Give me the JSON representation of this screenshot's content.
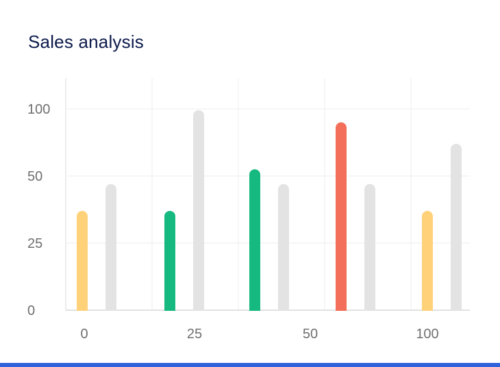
{
  "title": "Sales analysis",
  "chart_data": {
    "type": "bar",
    "title": "Sales analysis",
    "xlabel": "",
    "ylabel": "",
    "y_ticks": [
      "0",
      "25",
      "50",
      "100"
    ],
    "x_ticks": [
      "0",
      "25",
      "50",
      "100"
    ],
    "grid": true,
    "groups": [
      {
        "bars": [
          {
            "value": 37,
            "color": "#ffd27a"
          },
          {
            "value": 47,
            "color": "#e3e3e3"
          }
        ]
      },
      {
        "bars": [
          {
            "value": 37,
            "color": "#16b97f"
          },
          {
            "value": 99,
            "color": "#e3e3e3"
          }
        ]
      },
      {
        "bars": [
          {
            "value": 55,
            "color": "#16b97f"
          },
          {
            "value": 47,
            "color": "#e3e3e3"
          }
        ]
      },
      {
        "bars": [
          {
            "value": 90,
            "color": "#f46f5a"
          },
          {
            "value": 47,
            "color": "#e3e3e3"
          }
        ]
      },
      {
        "bars": [
          {
            "value": 37,
            "color": "#ffd27a"
          },
          {
            "value": 74,
            "color": "#e3e3e3"
          }
        ]
      }
    ]
  },
  "colors": {
    "title": "#0d1b4c",
    "grid": "#ececec",
    "tick_text": "#6f6f6f",
    "bottom_accent": "#2f63dc"
  }
}
